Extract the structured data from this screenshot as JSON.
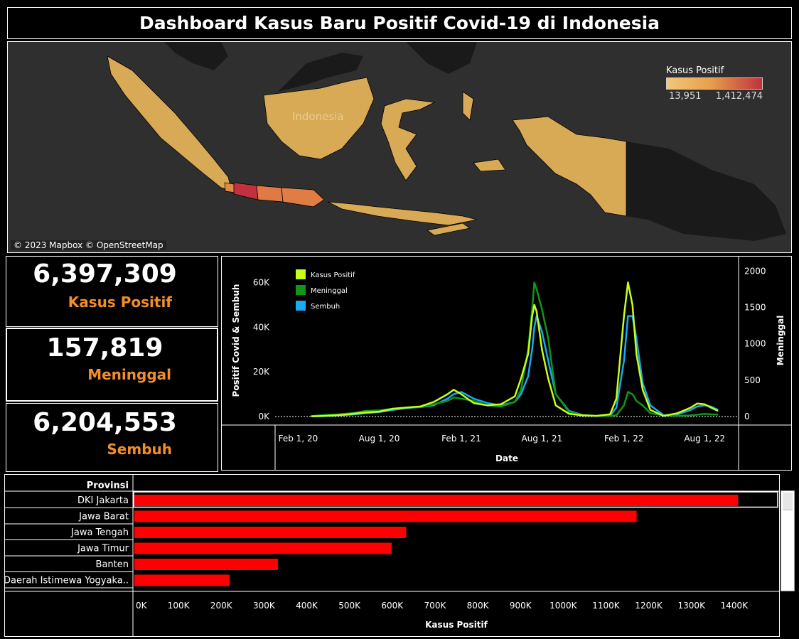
{
  "title": "Dashboard Kasus Baru Positif Covid-19 di Indonesia",
  "map": {
    "country_label": "Indonesia",
    "attribution": "© 2023 Mapbox © OpenStreetMap",
    "legend": {
      "title": "Kasus Positif",
      "min": "13,951",
      "max": "1,412,474",
      "color_low": "#f2c77a",
      "color_high": "#c1323d"
    }
  },
  "kpis": [
    {
      "value": "6,397,309",
      "label": "Kasus Positif"
    },
    {
      "value": "157,819",
      "label": "Meninggal"
    },
    {
      "value": "6,204,553",
      "label": "Sembuh"
    }
  ],
  "colors": {
    "positif": "#c5ff1a",
    "meninggal": "#109618",
    "sembuh": "#19a9f5",
    "bar": "#ff0000",
    "label_orange": "#f28e2b"
  },
  "chart_data": [
    {
      "type": "line",
      "xlabel": "Date",
      "ylabel": "Positif Covid & Sembuh",
      "ylabel_right": "Meninggal",
      "x_ticks": [
        "Feb 1, 20",
        "Aug 1, 20",
        "Feb 1, 21",
        "Aug 1, 21",
        "Feb 1, 22",
        "Aug 1, 22"
      ],
      "y_ticks": [
        "0K",
        "20K",
        "40K",
        "60K"
      ],
      "y_right_ticks": [
        "0",
        "500",
        "1000",
        "1500",
        "2000"
      ],
      "ylim": [
        0,
        70000
      ],
      "ylim_right": [
        0,
        2150
      ],
      "legend": [
        "Kasus Positif",
        "Meninggal",
        "Sembuh"
      ],
      "x": [
        "2020-03-01",
        "2020-04-01",
        "2020-05-01",
        "2020-06-01",
        "2020-07-01",
        "2020-08-01",
        "2020-09-01",
        "2020-10-01",
        "2020-11-01",
        "2020-12-01",
        "2021-01-01",
        "2021-01-15",
        "2021-02-01",
        "2021-03-01",
        "2021-04-01",
        "2021-05-01",
        "2021-06-01",
        "2021-06-15",
        "2021-07-01",
        "2021-07-10",
        "2021-07-15",
        "2021-07-20",
        "2021-08-01",
        "2021-08-15",
        "2021-09-01",
        "2021-10-01",
        "2021-11-01",
        "2021-12-01",
        "2022-01-01",
        "2022-01-15",
        "2022-02-01",
        "2022-02-10",
        "2022-02-20",
        "2022-03-01",
        "2022-03-15",
        "2022-04-01",
        "2022-05-01",
        "2022-06-01",
        "2022-07-01",
        "2022-07-15",
        "2022-08-01",
        "2022-08-15",
        "2022-08-31"
      ],
      "series": [
        {
          "name": "Kasus Positif",
          "axis": "left",
          "values": [
            100,
            300,
            600,
            1200,
            1800,
            2200,
            3500,
            4000,
            4500,
            6500,
            10000,
            12000,
            10000,
            6000,
            5000,
            5500,
            9000,
            17000,
            28000,
            45000,
            50000,
            47000,
            30000,
            17000,
            5000,
            1200,
            500,
            300,
            1000,
            8000,
            45000,
            60000,
            50000,
            28000,
            12000,
            3000,
            300,
            1500,
            4000,
            5800,
            5500,
            4000,
            2500
          ]
        },
        {
          "name": "Meninggal",
          "axis": "left",
          "values": [
            200,
            700,
            1000,
            1500,
            2500,
            2800,
            3500,
            4000,
            4200,
            5500,
            7000,
            8500,
            8000,
            7000,
            5000,
            4500,
            6500,
            12000,
            30000,
            48000,
            60000,
            57000,
            48000,
            35000,
            10000,
            2000,
            700,
            300,
            300,
            600,
            5000,
            11000,
            10000,
            7000,
            5000,
            1500,
            500,
            300,
            500,
            800,
            1200,
            1000,
            900
          ]
        },
        {
          "name": "Sembuh",
          "axis": "left",
          "values": [
            50,
            200,
            500,
            900,
            1500,
            2000,
            3000,
            3800,
            4200,
            5000,
            8000,
            10000,
            11000,
            8000,
            6000,
            5000,
            6500,
            10000,
            18000,
            30000,
            40000,
            45000,
            38000,
            25000,
            10000,
            2500,
            600,
            300,
            400,
            4000,
            25000,
            45000,
            45000,
            35000,
            15000,
            5000,
            600,
            1000,
            3000,
            4500,
            5000,
            4500,
            3000
          ]
        }
      ]
    },
    {
      "type": "bar",
      "orientation": "horizontal",
      "header": "Provinsi",
      "xlabel": "Kasus Positif",
      "x_ticks": [
        "0K",
        "100K",
        "200K",
        "300K",
        "400K",
        "500K",
        "600K",
        "700K",
        "800K",
        "900K",
        "1000K",
        "1100K",
        "1200K",
        "1300K",
        "1400K"
      ],
      "xlim": [
        0,
        1490000
      ],
      "categories": [
        "DKI Jakarta",
        "Jawa Barat",
        "Jawa Tengah",
        "Jawa Timur",
        "Banten",
        "Daerah Istimewa Yogyaka.."
      ],
      "values": [
        1412474,
        1175000,
        636000,
        602000,
        336000,
        223000
      ]
    }
  ]
}
